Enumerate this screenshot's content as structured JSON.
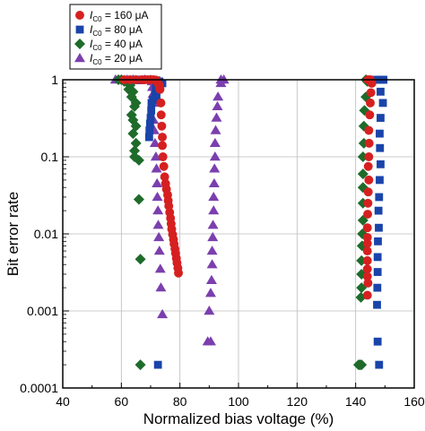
{
  "chart_data": {
    "type": "scatter",
    "xlabel": "Normalized bias voltage (%)",
    "ylabel": "Bit error rate",
    "xlim": [
      40,
      160
    ],
    "ylim": [
      0.0001,
      1
    ],
    "yscale": "log",
    "xticks": [
      "40",
      "60",
      "80",
      "100",
      "120",
      "140",
      "160"
    ],
    "yticks": [
      "0.0001",
      "0.001",
      "0.01",
      "0.1",
      "1"
    ],
    "grid": true,
    "legend_position": "top-left",
    "series": [
      {
        "name": "I_C0 = 160 μA",
        "legend": {
          "symbol": "I",
          "subscript": "C0",
          "rest": " = 160 μA"
        },
        "marker": "circle",
        "color": "#d62020",
        "points": [
          [
            61,
            1
          ],
          [
            63,
            1
          ],
          [
            65,
            1
          ],
          [
            67,
            1
          ],
          [
            68,
            1
          ],
          [
            69,
            1
          ],
          [
            70,
            1
          ],
          [
            71,
            1
          ],
          [
            72,
            0.98
          ],
          [
            72.5,
            0.9
          ],
          [
            73,
            0.85
          ],
          [
            73,
            0.8
          ],
          [
            73.2,
            0.75
          ],
          [
            73.5,
            0.5
          ],
          [
            73.6,
            0.35
          ],
          [
            73.8,
            0.25
          ],
          [
            74,
            0.18
          ],
          [
            74,
            0.14
          ],
          [
            74.2,
            0.1
          ],
          [
            74.5,
            0.075
          ],
          [
            74.8,
            0.055
          ],
          [
            75.1,
            0.045
          ],
          [
            75.4,
            0.038
          ],
          [
            75.8,
            0.032
          ],
          [
            76,
            0.027
          ],
          [
            76.2,
            0.023
          ],
          [
            76.5,
            0.019
          ],
          [
            76.8,
            0.016
          ],
          [
            77,
            0.0135
          ],
          [
            77.2,
            0.0115
          ],
          [
            77.5,
            0.0098
          ],
          [
            77.8,
            0.0085
          ],
          [
            78,
            0.0074
          ],
          [
            78.3,
            0.0064
          ],
          [
            78.5,
            0.0056
          ],
          [
            78.8,
            0.0048
          ],
          [
            79,
            0.0042
          ],
          [
            79.3,
            0.0036
          ],
          [
            79.5,
            0.0031
          ],
          [
            144.2,
            1
          ],
          [
            145,
            1
          ],
          [
            145.5,
            0.9
          ],
          [
            145.2,
            0.68
          ],
          [
            145,
            0.5
          ],
          [
            144.8,
            0.35
          ],
          [
            144.5,
            0.22
          ],
          [
            144.6,
            0.15
          ],
          [
            144.5,
            0.1
          ],
          [
            144.3,
            0.075
          ],
          [
            144.5,
            0.05
          ],
          [
            144.3,
            0.035
          ],
          [
            144.2,
            0.025
          ],
          [
            144.1,
            0.018
          ],
          [
            144,
            0.012
          ],
          [
            144,
            0.009
          ],
          [
            144,
            0.0075
          ],
          [
            144,
            0.006
          ],
          [
            144,
            0.0045
          ],
          [
            144,
            0.0035
          ],
          [
            144,
            0.0028
          ],
          [
            144.2,
            0.0023
          ],
          [
            144,
            0.0016
          ]
        ]
      },
      {
        "name": "I_C0 = 80 μA",
        "legend": {
          "symbol": "I",
          "subscript": "C0",
          "rest": " = 80 μA"
        },
        "marker": "square",
        "color": "#1a44aa",
        "points": [
          [
            65,
            1
          ],
          [
            66,
            1
          ],
          [
            67,
            1
          ],
          [
            68,
            1
          ],
          [
            69,
            1
          ],
          [
            70,
            1
          ],
          [
            71,
            1
          ],
          [
            72,
            0.98
          ],
          [
            73,
            0.95
          ],
          [
            74,
            0.9
          ],
          [
            71.8,
            0.85
          ],
          [
            71.5,
            0.65
          ],
          [
            70.8,
            0.55
          ],
          [
            70.3,
            0.5
          ],
          [
            70.2,
            0.4
          ],
          [
            70,
            0.32
          ],
          [
            69.8,
            0.27
          ],
          [
            69.6,
            0.22
          ],
          [
            69.5,
            0.18
          ],
          [
            72.5,
            0.8
          ],
          [
            72,
            0.6
          ],
          [
            71.8,
            0.7
          ],
          [
            72.5,
            0.0002
          ],
          [
            147,
            1
          ],
          [
            148,
            1
          ],
          [
            149,
            1
          ],
          [
            149.5,
            1
          ],
          [
            148.5,
            0.7
          ],
          [
            149.3,
            0.5
          ],
          [
            148.5,
            0.32
          ],
          [
            148.2,
            0.2
          ],
          [
            148.3,
            0.13
          ],
          [
            148.5,
            0.08
          ],
          [
            148.2,
            0.05
          ],
          [
            148,
            0.03
          ],
          [
            147.8,
            0.02
          ],
          [
            147.9,
            0.012
          ],
          [
            147.6,
            0.008
          ],
          [
            147.5,
            0.005
          ],
          [
            147.5,
            0.0032
          ],
          [
            147.4,
            0.002
          ],
          [
            147.3,
            0.0012
          ],
          [
            147.5,
            0.0004
          ],
          [
            148,
            0.0002
          ]
        ]
      },
      {
        "name": "I_C0 = 40 μA",
        "legend": {
          "symbol": "I",
          "subscript": "C0",
          "rest": " = 40 μA"
        },
        "marker": "diamond",
        "color": "#1e6b2a",
        "points": [
          [
            59,
            1
          ],
          [
            60,
            1
          ],
          [
            61,
            0.95
          ],
          [
            62,
            0.92
          ],
          [
            63,
            0.85
          ],
          [
            62.5,
            0.75
          ],
          [
            64,
            0.7
          ],
          [
            63.5,
            0.6
          ],
          [
            65,
            0.5
          ],
          [
            64.5,
            0.45
          ],
          [
            63.5,
            0.35
          ],
          [
            64,
            0.3
          ],
          [
            65,
            0.25
          ],
          [
            64,
            0.2
          ],
          [
            65,
            0.15
          ],
          [
            64.5,
            0.12
          ],
          [
            64.5,
            0.1
          ],
          [
            66,
            0.09
          ],
          [
            66,
            0.028
          ],
          [
            66.5,
            0.0047
          ],
          [
            66.5,
            0.0002
          ],
          [
            143.5,
            1
          ],
          [
            144,
            0.95
          ],
          [
            143.5,
            0.6
          ],
          [
            143,
            0.4
          ],
          [
            142.8,
            0.25
          ],
          [
            142.8,
            0.15
          ],
          [
            142.5,
            0.1
          ],
          [
            142.5,
            0.06
          ],
          [
            142.5,
            0.04
          ],
          [
            142.5,
            0.025
          ],
          [
            142.5,
            0.015
          ],
          [
            142.3,
            0.01
          ],
          [
            142.2,
            0.007
          ],
          [
            142,
            0.0045
          ],
          [
            142,
            0.003
          ],
          [
            142,
            0.002
          ],
          [
            141.8,
            0.0015
          ],
          [
            141,
            0.0002
          ],
          [
            141.5,
            0.0002
          ],
          [
            142,
            0.0002
          ]
        ]
      },
      {
        "name": "I_C0 = 20 μA",
        "legend": {
          "symbol": "I",
          "subscript": "C0",
          "rest": " = 20 μA"
        },
        "marker": "triangle",
        "color": "#7b3fae",
        "points": [
          [
            58,
            1
          ],
          [
            60,
            1
          ],
          [
            62,
            1
          ],
          [
            64,
            1
          ],
          [
            66,
            0.98
          ],
          [
            68,
            1
          ],
          [
            70,
            1
          ],
          [
            70.5,
            0.95
          ],
          [
            70.6,
            0.8
          ],
          [
            70.8,
            0.65
          ],
          [
            71,
            0.5
          ],
          [
            71,
            0.3
          ],
          [
            71.2,
            0.22
          ],
          [
            71.5,
            0.15
          ],
          [
            71.8,
            0.1
          ],
          [
            72,
            0.07
          ],
          [
            72.2,
            0.045
          ],
          [
            72.3,
            0.03
          ],
          [
            72.5,
            0.02
          ],
          [
            72.6,
            0.013
          ],
          [
            72.8,
            0.009
          ],
          [
            73,
            0.006
          ],
          [
            73.3,
            0.0035
          ],
          [
            73.5,
            0.002
          ],
          [
            74,
            0.0009
          ],
          [
            94,
            1
          ],
          [
            95,
            1
          ],
          [
            94,
            0.9
          ],
          [
            93,
            0.6
          ],
          [
            92.8,
            0.45
          ],
          [
            92.5,
            0.32
          ],
          [
            92.2,
            0.22
          ],
          [
            92,
            0.15
          ],
          [
            92,
            0.1
          ],
          [
            91.8,
            0.07
          ],
          [
            91.7,
            0.045
          ],
          [
            91.5,
            0.03
          ],
          [
            91.5,
            0.02
          ],
          [
            91.3,
            0.013
          ],
          [
            91.2,
            0.009
          ],
          [
            91,
            0.006
          ],
          [
            91,
            0.004
          ],
          [
            90.8,
            0.0025
          ],
          [
            90.5,
            0.0017
          ],
          [
            90,
            0.001
          ],
          [
            89.5,
            0.0004
          ],
          [
            90.5,
            0.0004
          ]
        ]
      }
    ]
  }
}
